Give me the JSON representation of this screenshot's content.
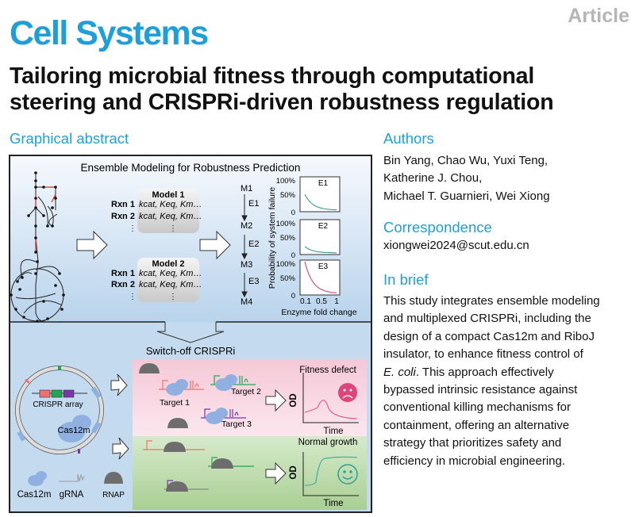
{
  "header": {
    "journal": "Cell Systems",
    "article_type": "Article"
  },
  "title": {
    "lines": [
      "Tailoring microbial fitness through computational",
      "steering and CRISPRi-driven robustness regulation"
    ]
  },
  "graphical_abstract": {
    "heading": "Graphical abstract",
    "top": {
      "title": "Ensemble Modeling for Robustness Prediction",
      "model1": {
        "label": "Model 1",
        "rxn1": "Rxn 1",
        "rxn2": "Rxn 2",
        "params": "kcat, Keq, Km…"
      },
      "model2": {
        "label": "Model 2",
        "rxn1": "Rxn 1",
        "rxn2": "Rxn 2",
        "params": "kcat, Keq, Km…"
      },
      "ellipsis": "⋮",
      "states": [
        "M1",
        "M2",
        "M3",
        "M4"
      ],
      "enzymes": [
        "E1",
        "E2",
        "E3"
      ],
      "ylabel": "Probability of system failure",
      "yticks": [
        "100%",
        "50%",
        "0"
      ],
      "xticks": [
        "0.1",
        "0.5",
        "1"
      ],
      "xlabel": "Enzyme fold change",
      "panels": [
        {
          "name": "E1",
          "start_failure_pct": 50,
          "color": "#3a9a9e"
        },
        {
          "name": "E2",
          "start_failure_pct": 20,
          "color": "#3a9a9e"
        },
        {
          "name": "E3",
          "start_failure_pct": 100,
          "color": "#d9407a"
        }
      ]
    },
    "bottom": {
      "title": "Switch-off CRISPRi",
      "crispr_array": "CRISPR array",
      "cas12m": "Cas12m",
      "fitness_defect": "Fitness defect",
      "normal_growth": "Normal growth",
      "targets": [
        "Target 1",
        "Target 2",
        "Target 3"
      ],
      "od": "OD",
      "time": "Time",
      "legend": {
        "cas12m": "Cas12m",
        "grna": "gRNA",
        "rnap": "RNAP"
      },
      "colors": {
        "target1": "#f07070",
        "target2": "#1fa84f",
        "target3": "#7a35a8",
        "cas12m": "#8fb0e0",
        "rnap": "#6d6d6d",
        "sad": "#e0457a",
        "happy": "#2aa39a"
      }
    }
  },
  "authors": {
    "heading": "Authors",
    "lines": [
      "Bin Yang, Chao Wu, Yuxi Teng,",
      "Katherine J. Chou,",
      "Michael T. Guarnieri, Wei Xiong"
    ]
  },
  "correspondence": {
    "heading": "Correspondence",
    "email": "xiongwei2024@scut.edu.cn"
  },
  "in_brief": {
    "heading": "In brief",
    "lines": [
      "This study integrates ensemble modeling",
      "and multiplexed CRISPRi, including the",
      "design of a compact Cas12m and RiboJ",
      "insulator, to enhance fitness control of",
      "E. coli. This approach effectively",
      "bypassed intrinsic resistance against",
      "conventional killing mechanisms for",
      "containment, offering an alternative",
      "strategy that prioritizes safety and",
      "efficiency in microbial engineering."
    ]
  }
}
